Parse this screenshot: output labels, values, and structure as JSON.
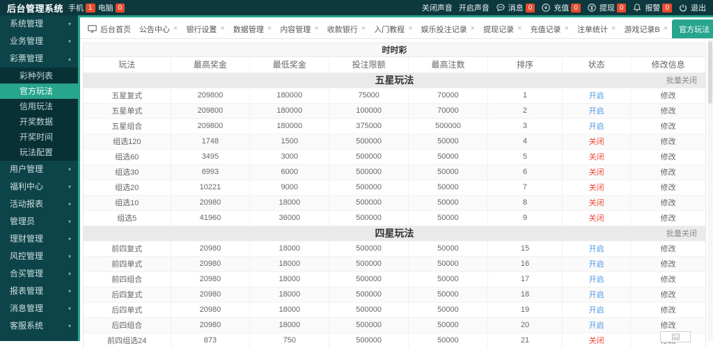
{
  "topbar": {
    "title": "后台管理系统",
    "devices": [
      {
        "label": "手机",
        "count": "1"
      },
      {
        "label": "电脑",
        "count": "0"
      }
    ],
    "sound_off": "关闭声音",
    "sound_on": "开启声音",
    "message_label": "消息",
    "message_count": "0",
    "recharge_label": "充值",
    "recharge_count": "0",
    "withdraw_label": "提现",
    "withdraw_count": "0",
    "alarm_label": "报警",
    "alarm_count": "0",
    "logout_label": "退出"
  },
  "sidebar": {
    "items": [
      {
        "label": "系统管理"
      },
      {
        "label": "业务管理"
      },
      {
        "label": "彩票管理",
        "expanded": true,
        "children": [
          {
            "label": "彩种列表"
          },
          {
            "label": "官方玩法",
            "active": true
          },
          {
            "label": "信用玩法"
          },
          {
            "label": "开奖数据"
          },
          {
            "label": "开奖时间"
          },
          {
            "label": "玩法配置"
          }
        ]
      },
      {
        "label": "用户管理"
      },
      {
        "label": "福利中心"
      },
      {
        "label": "活动报表"
      },
      {
        "label": "管理员"
      },
      {
        "label": "理财管理"
      },
      {
        "label": "风控管理"
      },
      {
        "label": "合买管理"
      },
      {
        "label": "报表管理"
      },
      {
        "label": "消息管理"
      },
      {
        "label": "客服系统"
      }
    ]
  },
  "tabs": [
    {
      "label": "后台首页",
      "icon": "desktop",
      "closable": false
    },
    {
      "label": "公告中心",
      "closable": true
    },
    {
      "label": "银行设置",
      "closable": true
    },
    {
      "label": "数据管理",
      "closable": true
    },
    {
      "label": "内容管理",
      "closable": true
    },
    {
      "label": "收款银行",
      "closable": true
    },
    {
      "label": "入门教程",
      "closable": true
    },
    {
      "label": "娱乐投注记录",
      "closable": true
    },
    {
      "label": "提现记录",
      "closable": true
    },
    {
      "label": "充值记录",
      "closable": true
    },
    {
      "label": "注单统计",
      "closable": true
    },
    {
      "label": "游戏记录B",
      "closable": true
    },
    {
      "label": "官方玩法",
      "closable": true,
      "active": true
    }
  ],
  "table": {
    "title": "时时彩",
    "columns": [
      "玩法",
      "最高奖金",
      "最低奖金",
      "投注限额",
      "最高注数",
      "排序",
      "状态",
      "修改信息"
    ],
    "sections": [
      {
        "name": "五星玩法",
        "batch": "批量关闭",
        "rows": [
          [
            "五星复式",
            "209800",
            "180000",
            "75000",
            "70000",
            "1",
            "开启",
            "修改"
          ],
          [
            "五星单式",
            "209800",
            "180000",
            "100000",
            "70000",
            "2",
            "开启",
            "修改"
          ],
          [
            "五星组合",
            "209800",
            "180000",
            "375000",
            "500000",
            "3",
            "开启",
            "修改"
          ],
          [
            "组选120",
            "1748",
            "1500",
            "500000",
            "50000",
            "4",
            "关闭",
            "修改"
          ],
          [
            "组选60",
            "3495",
            "3000",
            "500000",
            "50000",
            "5",
            "关闭",
            "修改"
          ],
          [
            "组选30",
            "6993",
            "6000",
            "500000",
            "50000",
            "6",
            "关闭",
            "修改"
          ],
          [
            "组选20",
            "10221",
            "9000",
            "500000",
            "50000",
            "7",
            "关闭",
            "修改"
          ],
          [
            "组选10",
            "20980",
            "18000",
            "500000",
            "50000",
            "8",
            "关闭",
            "修改"
          ],
          [
            "组选5",
            "41960",
            "36000",
            "500000",
            "50000",
            "9",
            "关闭",
            "修改"
          ]
        ]
      },
      {
        "name": "四星玩法",
        "batch": "批量关闭",
        "rows": [
          [
            "前四复式",
            "20980",
            "18000",
            "500000",
            "50000",
            "15",
            "开启",
            "修改"
          ],
          [
            "前四单式",
            "20980",
            "18000",
            "500000",
            "50000",
            "16",
            "开启",
            "修改"
          ],
          [
            "前四组合",
            "20980",
            "18000",
            "500000",
            "50000",
            "17",
            "开启",
            "修改"
          ],
          [
            "后四复式",
            "20980",
            "18000",
            "500000",
            "50000",
            "18",
            "开启",
            "修改"
          ],
          [
            "后四单式",
            "20980",
            "18000",
            "500000",
            "50000",
            "19",
            "开启",
            "修改"
          ],
          [
            "后四组合",
            "20980",
            "18000",
            "500000",
            "50000",
            "20",
            "开启",
            "修改"
          ],
          [
            "前四组选24",
            "873",
            "750",
            "500000",
            "50000",
            "21",
            "关闭",
            "修改"
          ]
        ]
      }
    ]
  },
  "colors": {
    "accent": "#27a58d",
    "topbar_bg": "#0c383e",
    "sidebar_bg": "#0d444a",
    "submenu_bg": "#083136",
    "badge_red": "#e74b2d",
    "status_open": "#4e97e4",
    "status_closed": "#ef4836"
  }
}
